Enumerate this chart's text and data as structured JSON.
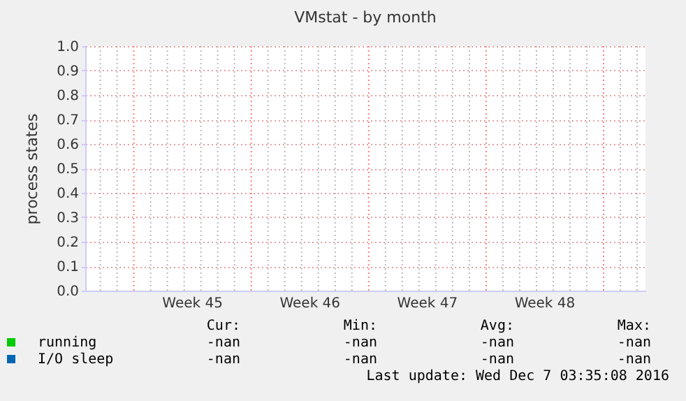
{
  "chart_data": {
    "type": "line",
    "title": "VMstat - by month",
    "ylabel": "process states",
    "categories": [
      "Week 45",
      "Week 46",
      "Week 47",
      "Week 48"
    ],
    "series": [
      {
        "name": "running",
        "color": "#00cc00",
        "values": [
          null,
          null,
          null,
          null
        ]
      },
      {
        "name": "I/O sleep",
        "color": "#0066b3",
        "values": [
          null,
          null,
          null,
          null
        ]
      }
    ],
    "ylim": [
      0,
      1
    ],
    "yticks": [
      {
        "value": 0,
        "label": "0.0"
      },
      {
        "value": 0.1,
        "label": "0.1"
      },
      {
        "value": 0.2,
        "label": "0.2"
      },
      {
        "value": 0.3,
        "label": "0.3"
      },
      {
        "value": 0.4,
        "label": "0.4"
      },
      {
        "value": 0.5,
        "label": "0.5"
      },
      {
        "value": 0.6,
        "label": "0.6"
      },
      {
        "value": 0.7,
        "label": "0.7"
      },
      {
        "value": 0.8,
        "label": "0.8"
      },
      {
        "value": 0.9,
        "label": "0.9"
      },
      {
        "value": 1,
        "label": "1.0"
      }
    ],
    "grid": true,
    "legend": "bottom",
    "annotations": [
      "Cur:",
      "Min:",
      "Avg:",
      "Max:",
      "-nan",
      "-nan",
      "-nan",
      "-nan",
      "-nan",
      "-nan",
      "-nan",
      "-nan",
      "Last update: Wed Dec  7 03:35:08 2016"
    ]
  }
}
